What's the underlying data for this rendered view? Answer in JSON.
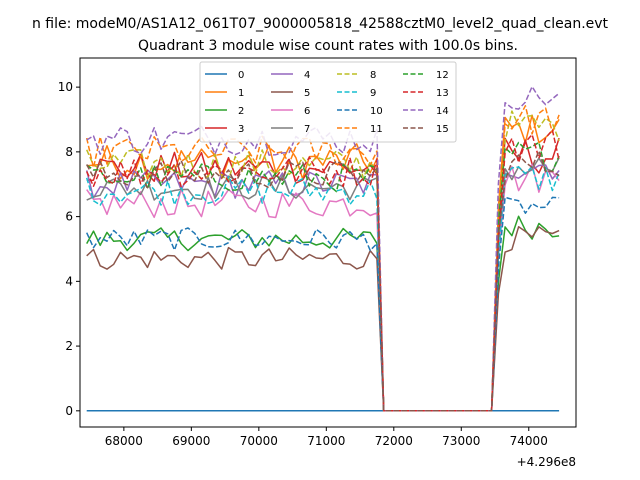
{
  "figure": {
    "suptitle": "n file: modeM0/AS1A12_061T07_9000005818_42588cztM0_level2_quad_clean.evt",
    "offset_text": "+4.296e8"
  },
  "chart_data": {
    "type": "line",
    "title": "Quadrant 3 module wise count rates with 100.0s bins.",
    "xlabel": "",
    "ylabel": "",
    "xlim": [
      67350,
      74700
    ],
    "ylim": [
      -0.5,
      10.9
    ],
    "xticks": [
      68000,
      69000,
      70000,
      71000,
      72000,
      73000,
      74000
    ],
    "yticks": [
      0,
      2,
      4,
      6,
      8,
      10
    ],
    "xtick_labels": [
      "68000",
      "69000",
      "70000",
      "71000",
      "72000",
      "73000",
      "74000"
    ],
    "ytick_labels": [
      "0",
      "2",
      "4",
      "6",
      "8",
      "10"
    ],
    "grid": false,
    "legend_position": "upper center",
    "legend_columns": 4,
    "bin_width_s": 100,
    "x_start": 67450,
    "x_end": 74450,
    "gap": [
      71800,
      73550
    ],
    "series": [
      {
        "name": "0",
        "color": "#1f77b4",
        "dash": "solid",
        "mean1": 0.0,
        "amp1": 0.0,
        "mean2": 0.0,
        "amp2": 0.0
      },
      {
        "name": "1",
        "color": "#ff7f0e",
        "dash": "solid",
        "mean1": 7.7,
        "amp1": 0.55,
        "mean2": 8.7,
        "amp2": 0.5
      },
      {
        "name": "2",
        "color": "#2ca02c",
        "dash": "solid",
        "mean1": 5.3,
        "amp1": 0.35,
        "mean2": 5.7,
        "amp2": 0.4
      },
      {
        "name": "3",
        "color": "#d62728",
        "dash": "solid",
        "mean1": 7.5,
        "amp1": 0.5,
        "mean2": 7.9,
        "amp2": 0.6
      },
      {
        "name": "4",
        "color": "#9467bd",
        "dash": "solid",
        "mean1": 7.0,
        "amp1": 0.45,
        "mean2": 7.6,
        "amp2": 0.5
      },
      {
        "name": "5",
        "color": "#8c564b",
        "dash": "solid",
        "mean1": 4.7,
        "amp1": 0.35,
        "mean2": 5.3,
        "amp2": 0.4
      },
      {
        "name": "6",
        "color": "#e377c2",
        "dash": "solid",
        "mean1": 6.4,
        "amp1": 0.45,
        "mean2": 7.2,
        "amp2": 0.5
      },
      {
        "name": "7",
        "color": "#7f7f7f",
        "dash": "solid",
        "mean1": 6.9,
        "amp1": 0.4,
        "mean2": 7.5,
        "amp2": 0.5
      },
      {
        "name": "8",
        "color": "#bcbd22",
        "dash": "dashed",
        "mean1": 7.6,
        "amp1": 0.5,
        "mean2": 8.8,
        "amp2": 0.5
      },
      {
        "name": "9",
        "color": "#17becf",
        "dash": "dashed",
        "mean1": 6.8,
        "amp1": 0.45,
        "mean2": 7.2,
        "amp2": 0.5
      },
      {
        "name": "10",
        "color": "#1f77b4",
        "dash": "dashed",
        "mean1": 5.3,
        "amp1": 0.35,
        "mean2": 6.3,
        "amp2": 0.3
      },
      {
        "name": "11",
        "color": "#ff7f0e",
        "dash": "dashed",
        "mean1": 8.0,
        "amp1": 0.5,
        "mean2": 9.0,
        "amp2": 0.5
      },
      {
        "name": "12",
        "color": "#2ca02c",
        "dash": "dashed",
        "mean1": 7.2,
        "amp1": 0.45,
        "mean2": 7.9,
        "amp2": 0.5
      },
      {
        "name": "13",
        "color": "#d62728",
        "dash": "dashed",
        "mean1": 7.4,
        "amp1": 0.5,
        "mean2": 8.2,
        "amp2": 0.6
      },
      {
        "name": "14",
        "color": "#9467bd",
        "dash": "dashed",
        "mean1": 8.4,
        "amp1": 0.5,
        "mean2": 9.7,
        "amp2": 0.4
      },
      {
        "name": "15",
        "color": "#8c564b",
        "dash": "dashed",
        "mean1": 7.3,
        "amp1": 0.45,
        "mean2": 7.6,
        "amp2": 0.5
      }
    ]
  }
}
